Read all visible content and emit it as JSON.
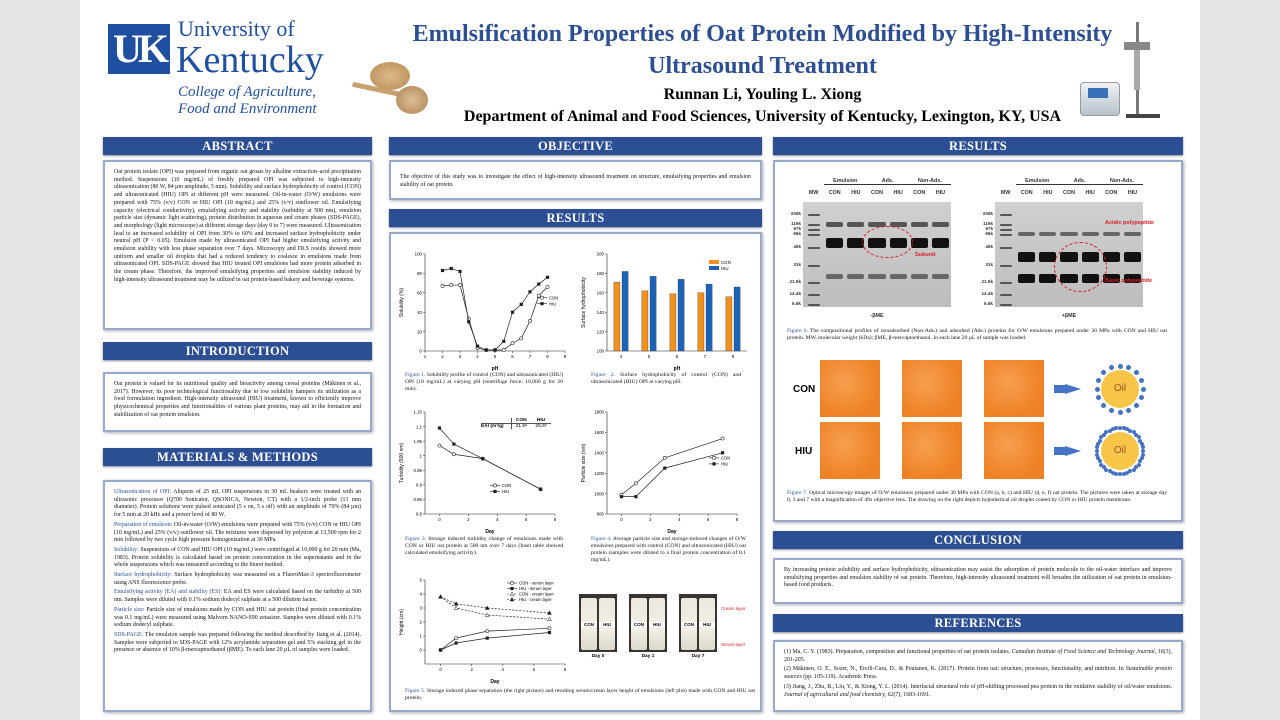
{
  "header": {
    "logo_line1": "University of",
    "logo_line2": "Kentucky",
    "logo_college1": "College of Agriculture,",
    "logo_college2": "Food and Environment",
    "logo_mark": "UK",
    "title_line1": "Emulsification Properties of Oat Protein Modified by High-Intensity",
    "title_line2": "Ultrasound Treatment",
    "authors": "Runnan Li, Youling L. Xiong",
    "affiliation": "Department of Animal and Food Sciences, University of Kentucky, Lexington, KY, USA"
  },
  "colors": {
    "brand": "#2c4f93",
    "con": "#f0901e",
    "hiu": "#1c62b5",
    "micrograph": "#ef8125",
    "oil": "#f7c548"
  },
  "abstract": {
    "heading": "ABSTRACT",
    "text": "Oat protein isolate (OPI) was prepared from organic oat groats by alkaline extraction–acid precipitation method. Suspensions (10 mg/mL) of freshly prepared OPI was subjected to high-intensity ultrasonication (80 W, 84 µm amplitude, 5 min). Solubility and surface hydrophobicity of control (CON) and ultrasonicated (HIU) OPI at different pH were measured. Oil-in-water (O/W) emulsions were prepared with 75% (v/v) CON or HIU OPI (10 mg/mL) and 25% (v/v) sunflower oil. Emulsifying capacity (electrical conductivity), emulsifying activity and stability (turbidity at 500 nm), emulsion particle size (dynamic light scattering), protein distribution in aqueous and cream phases (SDS-PAGE), and morphology (light microscope) at different storage days (day 0 to 7) were measured. Ultrasonication lead to an increased solubility of OPI from 30% to 60% and increased surface hydrophobicity under neutral pH (P < 0.05). Emulsion made by ultrasonicated OPI had higher emulsifying activity and emulsion stability with less phase separation over 7 days. Microscopy and DLS results showed more uniform and smaller oil droplets that had a reduced tendency to coalesce in emulsions made from ultrasonicated OPI. SDS-PAGE showed that HIU treated OPI emulsions had more protein adsorbed in the cream phase. Therefore, the improved emulsifying properties and emulsion stability induced by high-intensity ultrasound treatment may be utilized in oat protein-based bakery and beverage systems."
  },
  "introduction": {
    "heading": "INTRODUCTION",
    "text": "Oat protein is valued for its nutritional quality and bioactivity among cereal proteins (Mäkinen et al., 2017). However, its poor technological functionality due to low solubility hampers its utilization as a food formulation ingredient. High-intensity ultrasound (HIU) treatment, known to efficiently improve physicochemical properties and functionalities of various plant proteins, may aid in the formation and stabilization of oat protein emulsion."
  },
  "methods": {
    "heading": "MATERIALS & METHODS",
    "items": [
      {
        "title": "Ultrasonication of OPI:",
        "text": " Aliquots of 25 mL OPI suspensions in 30 mL beakers were treated with an ultrasonic processor (Q700 Sonicator, QSONICA, Newton, CT) with a 1/2-inch probe (13 mm diameter). Protein solutions were pulsed sonicated (5 s on, 5 s off) with an amplitude of 70% (84 µm) for 5 min at 20 kHz and a power level of 80 W."
      },
      {
        "title": "Preparation of emulsion:",
        "text": " Oil-in-water (O/W) emulsions were prepared with 75% (v/v) CON or HIU OPI (10 mg/mL) and 25% (v/v) sunflower oil. The mixtures were dispersed by polytron at 13,500 rpm for 2 min followed by two cycle high pressure homogenization at 30 MPa."
      },
      {
        "title": "Solubility:",
        "text": " Suspensions of CON and HIU OPI (10 mg/mL) were centrifuged at 10,000 g for 20 min (Ma, 1983). Protein solubility is calculated based on protein concentration in the supernatants and in the whole suspensions which was measured according to the biuret method."
      },
      {
        "title": "Surface hydrophobicity:",
        "text": " Surface hydrophobicity was measured on a FluoroMax-3 spectrofluorometer using ANS fluorescence probe."
      },
      {
        "title": "Emulsifying activity (EA) and stability (ES):",
        "text": " EA and ES were calculated based on the turbidity at 500 nm. Samples were diluted with 0.1% sodium dodecyl sulphate at a 500 dilution factor."
      },
      {
        "title": "Particle size:",
        "text": " Particle size of emulsions made by CON and HIU oat protein (final protein concentration was 0.1 mg/mL) were measured using Malvern NANO-S90 zetasizer. Samples were diluted with 0.1% sodium dodecyl sulphate."
      },
      {
        "title": "SDS-PAGE:",
        "text": " The emulsion sample was prepared following the method described by Jiang et al. (2014). Samples were subjected to SDS-PAGE with 12% acrylamide separation gel and 5% stacking gel in the presence or absence of 10% β-mercaptoethanol (βME). To each lane 20 µL of samples were loaded."
      }
    ]
  },
  "objective": {
    "heading": "OBJECTIVE",
    "text": "The objective of this study was to investigate the effect of high-intensity ultrasound treatment on structure, emulsifying properties and emulsion stability of oat protein."
  },
  "results_mid": {
    "heading": "RESULTS",
    "fig1": {
      "label": "Figure 1.",
      "text": " Solubility profile of control (CON) and ultrasonicated (HIU) OPI (10 mg/mL) at varying pH (centrifuge force: 10,000 g for 20 min)."
    },
    "fig2": {
      "label": "Figure 2.",
      "text": " Surface hydrophobicity of control (CON) and ultrasonicated (HIU) OPI at varying pH."
    },
    "fig3": {
      "label": "Figure 3.",
      "text": " Storage induced turbidity change of emulsions made with CON or HIU oat protein at 500 nm over 7 days (Inset table showed calculated emulsifying activity).",
      "inset": {
        "header": [
          "",
          "CON",
          "HIU"
        ],
        "row": [
          "EAI (m²/g)",
          "21.5ᵃ",
          "25.6ᵇ"
        ]
      }
    },
    "fig4": {
      "label": "Figure 4.",
      "text": " Average particle size and storage-induced changes of O/W emulsions prepared with control (CON) and ultrasonicated (HIU) oat protein (samples were diluted to a final protein concentration of 0.1 mg/mL)."
    },
    "fig5": {
      "label": "Figure 5.",
      "text": " Storage induced phase separation (the right picture) and resulting serum/cream layer height of emulsions (left plot) made with CON and HIU oat protein.",
      "photo": {
        "tube_labels": [
          "CON",
          "HIU"
        ],
        "days": [
          "Day 0",
          "Day 1",
          "Day 7"
        ],
        "cream": "Cream layer",
        "serum": "Serum layer"
      }
    }
  },
  "results_right": {
    "heading": "RESULTS",
    "gel": {
      "groups": [
        "Emulsion",
        "Ads.",
        "Non-Ads."
      ],
      "lanes": [
        "MW",
        "CON",
        "HIU",
        "CON",
        "HIU",
        "CON",
        "HIU"
      ],
      "mw_left": [
        "200k",
        "116k",
        "97k",
        "66k",
        "45k",
        "31k",
        "21.5k",
        "14.4k",
        "6.5k"
      ],
      "mw_right": [
        "200k",
        "116k",
        "97k",
        "66k",
        "45k",
        "31k",
        "21.5k",
        "14.4k",
        "6.5k"
      ],
      "left_label": "-βME",
      "right_label": "+βME",
      "subunit": "Subunit",
      "acidic": "Acidic polypeptide",
      "basic": "Basic polypeptide"
    },
    "fig6": {
      "label": "Figure 6.",
      "text": " The compositional profiles of nonadsorbed (Non-Ads.) and adsorbed (Ads.) proteins for O/W emulsions prepared under 30 MPa with CON and HIU oat protein. MW, molecular weight (kDa); βME, β-mercaptoethanol. In each lane 20 µL of sample was loaded."
    },
    "micro": {
      "rows": [
        "CON",
        "HIU"
      ],
      "oil": "Oil"
    },
    "fig7": {
      "label": "Figure 7.",
      "text": " Optical microscopy images of O/W emulsions prepared under 30 MPa with CON (a, b, c) and HIU (d, e, f) oat protein. The pictures were taken at storage day 0, 3 and 7 with a magnification of 40x objective lens. The drawing on the right depicts hypothetical oil droplet coated by CON or HIU protein membrane."
    }
  },
  "conclusion": {
    "heading": "CONCLUSION",
    "text": "By increasing protein solubility and surface hydrophobicity, ultrasonication may assist the adsorption of protein molecule to the oil-water interface and improve emulsifying properties and emulsion stability of oat protein. Therefore, high-intensity ultrasound treatment will broaden the utilization of oat protein in emulsion-based food products."
  },
  "references": {
    "heading": "REFERENCES",
    "items": [
      {
        "a": "(1) Ma, C. Y. (1983). Preparation, composition and functional properties of oat protein isolates. ",
        "j": "Canadian Institute of Food Science and Technology Journal, 16",
        "b": "(3), 201-205."
      },
      {
        "a": "(2) Mäkinen, O. E., Sozer, N., Ercili-Cura, D., & Poutanen, K. (2017). Protein from oat: structure, processes, functionality, and nutrition. In ",
        "j": "Sustainable protein sources",
        "b": " (pp. 105-119). Academic Press."
      },
      {
        "a": "(3) Jiang, J., Zhu, B., Liu, Y., & Xiong, Y. L. (2014). Interfacial structural role of pH-shifting processed pea protein in the oxidative stability of oil/water emulsions. ",
        "j": "Journal of agricultural and food chemistry, 62",
        "b": "(7), 1683-1691."
      }
    ]
  },
  "chart_data": [
    {
      "type": "line",
      "xlabel": "pH",
      "ylabel": "Solubility (%)",
      "xlim": [
        1,
        9
      ],
      "ylim": [
        0,
        100
      ],
      "xticks": [
        1,
        2,
        3,
        4,
        5,
        6,
        7,
        8,
        9
      ],
      "yticks": [
        0,
        20,
        40,
        60,
        80,
        100
      ],
      "legend": "right",
      "x": [
        2,
        2.5,
        3,
        3.5,
        4,
        4.5,
        5,
        5.5,
        6,
        6.5,
        7,
        7.5,
        8
      ],
      "series": [
        {
          "name": "CON",
          "values": [
            67,
            68,
            68,
            33,
            3,
            1,
            1,
            1,
            8,
            13,
            31,
            57,
            66
          ],
          "marker": "circle",
          "dash": false
        },
        {
          "name": "HIU",
          "values": [
            83,
            85,
            82,
            30,
            5,
            1,
            1,
            10,
            40,
            48,
            61,
            69,
            76
          ],
          "marker": "square",
          "dash": false
        }
      ]
    },
    {
      "type": "bar",
      "xlabel": "pH",
      "ylabel": "Surface hydrophobicity",
      "ylim": [
        100,
        200
      ],
      "yticks": [
        100,
        120,
        140,
        160,
        180,
        200
      ],
      "legend": "top-right",
      "categories": [
        "4",
        "5",
        "6",
        "7",
        "8"
      ],
      "series": [
        {
          "name": "CON",
          "values": [
            171,
            162,
            159,
            160,
            156
          ],
          "color": "#f0901e"
        },
        {
          "name": "HIU",
          "values": [
            182,
            177,
            174,
            169,
            166
          ],
          "color": "#1c62b5"
        }
      ]
    },
    {
      "type": "line",
      "xlabel": "Day",
      "ylabel": "Turbidity (500 nm)",
      "xlim": [
        -1,
        8
      ],
      "ylim": [
        0.8,
        1.15
      ],
      "xticks": [
        0,
        2,
        4,
        6,
        8
      ],
      "yticks": [
        0.8,
        0.85,
        0.9,
        0.95,
        1.0,
        1.05,
        1.1,
        1.15
      ],
      "legend": "bottom-center",
      "x": [
        0,
        1,
        3,
        7
      ],
      "series": [
        {
          "name": "CON",
          "values": [
            1.035,
            1.005,
            0.99,
            0.885
          ],
          "marker": "circle",
          "dash": false
        },
        {
          "name": "HIU",
          "values": [
            1.095,
            1.04,
            0.99,
            0.885
          ],
          "marker": "square",
          "dash": false
        }
      ]
    },
    {
      "type": "line",
      "xlabel": "Day",
      "ylabel": "Particle size (nm)",
      "xlim": [
        -1,
        8
      ],
      "ylim": [
        800,
        1800
      ],
      "xticks": [
        0,
        2,
        4,
        6,
        8
      ],
      "yticks": [
        800,
        1000,
        1200,
        1400,
        1600,
        1800
      ],
      "legend": "right",
      "x": [
        0,
        1,
        3,
        7
      ],
      "series": [
        {
          "name": "CON",
          "values": [
            990,
            1100,
            1350,
            1540
          ],
          "marker": "circle",
          "dash": false
        },
        {
          "name": "HIU",
          "values": [
            970,
            970,
            1250,
            1400
          ],
          "marker": "square",
          "dash": false
        }
      ]
    },
    {
      "type": "line",
      "xlabel": "Day",
      "ylabel": "Height (cm)",
      "xlim": [
        -1,
        8
      ],
      "ylim": [
        -1,
        5
      ],
      "xticks": [
        0,
        2,
        4,
        6,
        8
      ],
      "yticks": [
        0,
        1,
        2,
        3,
        4,
        5
      ],
      "legend": "top-right",
      "x": [
        0,
        1,
        3,
        7
      ],
      "series": [
        {
          "name": "CON - serum layer",
          "values": [
            0,
            0.85,
            1.35,
            1.55
          ],
          "marker": "circle",
          "dash": false
        },
        {
          "name": "HIU - serum layer",
          "values": [
            0,
            0.5,
            0.85,
            1.25
          ],
          "marker": "square",
          "dash": false
        },
        {
          "name": "CON - cream layer",
          "values": [
            3.8,
            3.0,
            2.5,
            2.2
          ],
          "marker": "triangle",
          "dash": true
        },
        {
          "name": "HIU - cream layer",
          "values": [
            3.8,
            3.3,
            3.0,
            2.65
          ],
          "marker": "triangle",
          "dash": true
        }
      ]
    }
  ]
}
